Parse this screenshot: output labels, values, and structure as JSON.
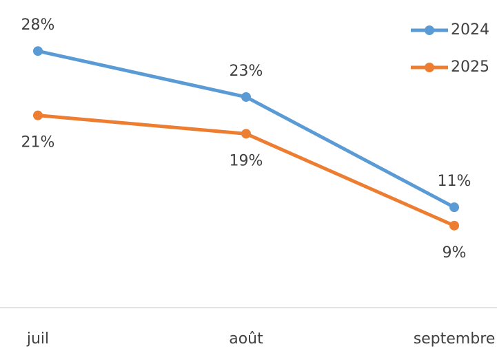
{
  "chart_data": {
    "type": "line",
    "categories": [
      "juil",
      "août",
      "septembre"
    ],
    "series": [
      {
        "name": "2024",
        "color": "#5b9bd5",
        "values": [
          28,
          23,
          11
        ],
        "value_labels": [
          "28%",
          "23%",
          "11%"
        ]
      },
      {
        "name": "2025",
        "color": "#ed7d31",
        "values": [
          21,
          19,
          9
        ],
        "value_labels": [
          "21%",
          "19%",
          "9%"
        ]
      }
    ],
    "legend": "top-right"
  }
}
